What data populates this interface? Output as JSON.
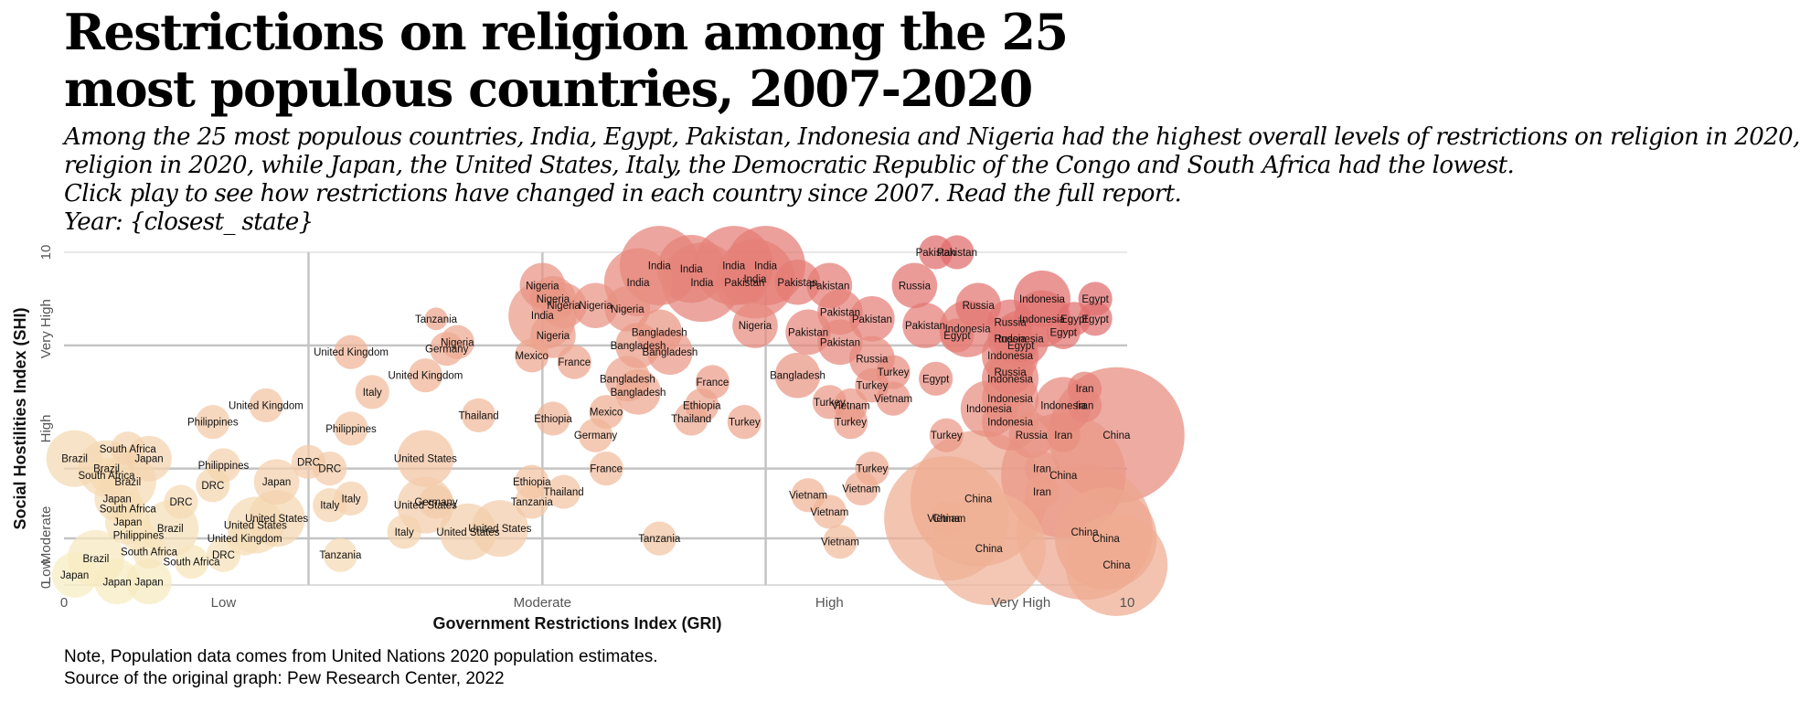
{
  "title": "Restrictions on religion among the 25 most populous countries, 2007-2020",
  "subtitle_lines": [
    "Among the 25 most populous countries, India, Egypt, Pakistan, Indonesia and Nigeria had the highest overall levels of restrictions on religion in 2020,",
    "religion in 2020, while Japan, the United States, Italy, the Democratic Republic of the Congo and South Africa had the lowest.",
    "Click play to see how restrictions have changed in each country since 2007. Read the full report.",
    "Year: {closest_ state}"
  ],
  "footer": {
    "note": "Note, Population data comes from United Nations 2020 population estimates.",
    "source": "Source of the original graph: Pew Research Center, 2022"
  },
  "chart_data": {
    "type": "scatter",
    "xlabel": "Government Restrictions Index (GRI)",
    "ylabel": "Social Hostilities Index (SHI)",
    "xlim": [
      0,
      10
    ],
    "ylim": [
      0,
      10
    ],
    "x_ticks": [
      {
        "value": 0,
        "label": "0"
      },
      {
        "value": 1.5,
        "label": "Low"
      },
      {
        "value": 4.5,
        "label": "Moderate"
      },
      {
        "value": 7.2,
        "label": "High"
      },
      {
        "value": 10,
        "label": "10"
      }
    ],
    "y_ticks": [
      {
        "value": 0,
        "label": "0"
      },
      {
        "value": 0.4,
        "label": "Low"
      },
      {
        "value": 1.5,
        "label": "Moderate"
      },
      {
        "value": 4.7,
        "label": "High"
      },
      {
        "value": 7.7,
        "label": "Very High"
      },
      {
        "value": 10,
        "label": "10"
      }
    ],
    "extra_x_tick": {
      "value": 9.0,
      "label": "Very High"
    },
    "x_gridlines": [
      2.3,
      4.5,
      6.6
    ],
    "y_gridlines": [
      1.4,
      3.5,
      7.2
    ],
    "grid": true,
    "color_scale": {
      "low": "#f7efc3",
      "mid": "#f1b99a",
      "high": "#e06b6b"
    },
    "points": [
      {
        "country": "India",
        "x": 5.6,
        "y": 9.6,
        "size": 7
      },
      {
        "country": "India",
        "x": 5.9,
        "y": 9.5,
        "size": 6
      },
      {
        "country": "India",
        "x": 6.3,
        "y": 9.6,
        "size": 7
      },
      {
        "country": "India",
        "x": 6.6,
        "y": 9.6,
        "size": 7
      },
      {
        "country": "India",
        "x": 6.5,
        "y": 9.2,
        "size": 7
      },
      {
        "country": "India",
        "x": 6.0,
        "y": 9.1,
        "size": 7
      },
      {
        "country": "India",
        "x": 5.4,
        "y": 9.1,
        "size": 6
      },
      {
        "country": "India",
        "x": 4.5,
        "y": 8.1,
        "size": 6
      },
      {
        "country": "Pakistan",
        "x": 8.2,
        "y": 10.0,
        "size": 3
      },
      {
        "country": "Pakistan",
        "x": 8.4,
        "y": 10.0,
        "size": 3
      },
      {
        "country": "Pakistan",
        "x": 6.9,
        "y": 9.1,
        "size": 4
      },
      {
        "country": "Pakistan",
        "x": 7.2,
        "y": 9.0,
        "size": 4
      },
      {
        "country": "Pakistan",
        "x": 6.4,
        "y": 9.1,
        "size": 4
      },
      {
        "country": "Pakistan",
        "x": 7.3,
        "y": 8.2,
        "size": 4
      },
      {
        "country": "Pakistan",
        "x": 7.6,
        "y": 8.0,
        "size": 4
      },
      {
        "country": "Pakistan",
        "x": 7.0,
        "y": 7.6,
        "size": 4
      },
      {
        "country": "Pakistan",
        "x": 7.3,
        "y": 7.3,
        "size": 4
      },
      {
        "country": "Pakistan",
        "x": 8.1,
        "y": 7.8,
        "size": 4
      },
      {
        "country": "Nigeria",
        "x": 4.5,
        "y": 9.0,
        "size": 4
      },
      {
        "country": "Nigeria",
        "x": 4.6,
        "y": 8.6,
        "size": 4
      },
      {
        "country": "Nigeria",
        "x": 4.7,
        "y": 8.4,
        "size": 4
      },
      {
        "country": "Nigeria",
        "x": 5.0,
        "y": 8.4,
        "size": 4
      },
      {
        "country": "Nigeria",
        "x": 5.3,
        "y": 8.3,
        "size": 4
      },
      {
        "country": "Nigeria",
        "x": 6.5,
        "y": 7.8,
        "size": 4
      },
      {
        "country": "Nigeria",
        "x": 4.6,
        "y": 7.5,
        "size": 4
      },
      {
        "country": "Nigeria",
        "x": 3.7,
        "y": 7.3,
        "size": 3
      },
      {
        "country": "Bangladesh",
        "x": 5.6,
        "y": 7.6,
        "size": 4
      },
      {
        "country": "Bangladesh",
        "x": 5.4,
        "y": 7.2,
        "size": 4
      },
      {
        "country": "Bangladesh",
        "x": 5.7,
        "y": 7.0,
        "size": 4
      },
      {
        "country": "Bangladesh",
        "x": 5.3,
        "y": 6.2,
        "size": 4
      },
      {
        "country": "Bangladesh",
        "x": 5.4,
        "y": 5.8,
        "size": 4
      },
      {
        "country": "Bangladesh",
        "x": 6.9,
        "y": 6.3,
        "size": 4
      },
      {
        "country": "Indonesia",
        "x": 9.2,
        "y": 8.6,
        "size": 5
      },
      {
        "country": "Indonesia",
        "x": 9.2,
        "y": 8.0,
        "size": 5
      },
      {
        "country": "Indonesia",
        "x": 8.5,
        "y": 7.7,
        "size": 5
      },
      {
        "country": "Indonesia",
        "x": 9.0,
        "y": 7.4,
        "size": 5
      },
      {
        "country": "Indonesia",
        "x": 8.9,
        "y": 6.9,
        "size": 5
      },
      {
        "country": "Indonesia",
        "x": 8.9,
        "y": 6.2,
        "size": 5
      },
      {
        "country": "Indonesia",
        "x": 8.9,
        "y": 5.6,
        "size": 5
      },
      {
        "country": "Indonesia",
        "x": 9.4,
        "y": 5.4,
        "size": 5
      },
      {
        "country": "Indonesia",
        "x": 8.7,
        "y": 5.3,
        "size": 5
      },
      {
        "country": "Indonesia",
        "x": 8.9,
        "y": 4.9,
        "size": 5
      },
      {
        "country": "Egypt",
        "x": 9.7,
        "y": 8.6,
        "size": 3
      },
      {
        "country": "Egypt",
        "x": 9.5,
        "y": 8.0,
        "size": 3
      },
      {
        "country": "Egypt",
        "x": 9.7,
        "y": 8.0,
        "size": 3
      },
      {
        "country": "Egypt",
        "x": 9.4,
        "y": 7.6,
        "size": 3
      },
      {
        "country": "Egypt",
        "x": 9.0,
        "y": 7.2,
        "size": 3
      },
      {
        "country": "Egypt",
        "x": 8.2,
        "y": 6.2,
        "size": 3
      },
      {
        "country": "Egypt",
        "x": 8.4,
        "y": 7.5,
        "size": 3
      },
      {
        "country": "Russia",
        "x": 8.0,
        "y": 9.0,
        "size": 4
      },
      {
        "country": "Russia",
        "x": 8.6,
        "y": 8.4,
        "size": 4
      },
      {
        "country": "Russia",
        "x": 8.9,
        "y": 7.9,
        "size": 4
      },
      {
        "country": "Russia",
        "x": 8.9,
        "y": 7.4,
        "size": 4
      },
      {
        "country": "Russia",
        "x": 8.9,
        "y": 6.4,
        "size": 4
      },
      {
        "country": "Russia",
        "x": 7.6,
        "y": 6.8,
        "size": 4
      },
      {
        "country": "Russia",
        "x": 9.1,
        "y": 4.5,
        "size": 4
      },
      {
        "country": "Iran",
        "x": 9.6,
        "y": 5.9,
        "size": 3
      },
      {
        "country": "Iran",
        "x": 9.6,
        "y": 5.4,
        "size": 3
      },
      {
        "country": "Iran",
        "x": 9.4,
        "y": 4.5,
        "size": 3
      },
      {
        "country": "Iran",
        "x": 9.2,
        "y": 3.5,
        "size": 3
      },
      {
        "country": "Iran",
        "x": 9.2,
        "y": 2.8,
        "size": 3
      },
      {
        "country": "China",
        "x": 9.9,
        "y": 4.5,
        "size": 12
      },
      {
        "country": "China",
        "x": 8.6,
        "y": 2.6,
        "size": 12
      },
      {
        "country": "China",
        "x": 9.6,
        "y": 1.6,
        "size": 12
      },
      {
        "country": "China",
        "x": 9.4,
        "y": 3.3,
        "size": 11
      },
      {
        "country": "China",
        "x": 8.7,
        "y": 1.1,
        "size": 10
      },
      {
        "country": "China",
        "x": 8.3,
        "y": 2.0,
        "size": 11
      },
      {
        "country": "China",
        "x": 9.8,
        "y": 1.4,
        "size": 9
      },
      {
        "country": "China",
        "x": 9.9,
        "y": 0.6,
        "size": 9
      },
      {
        "country": "Turkey",
        "x": 7.6,
        "y": 6.0,
        "size": 3
      },
      {
        "country": "Turkey",
        "x": 7.8,
        "y": 6.4,
        "size": 3
      },
      {
        "country": "Turkey",
        "x": 7.2,
        "y": 5.5,
        "size": 3
      },
      {
        "country": "Turkey",
        "x": 6.4,
        "y": 4.9,
        "size": 3
      },
      {
        "country": "Turkey",
        "x": 7.4,
        "y": 4.9,
        "size": 3
      },
      {
        "country": "Turkey",
        "x": 8.3,
        "y": 4.5,
        "size": 3
      },
      {
        "country": "Turkey",
        "x": 7.6,
        "y": 3.5,
        "size": 3
      },
      {
        "country": "Vietnam",
        "x": 7.4,
        "y": 5.4,
        "size": 3
      },
      {
        "country": "Vietnam",
        "x": 7.8,
        "y": 5.6,
        "size": 3
      },
      {
        "country": "Vietnam",
        "x": 7.5,
        "y": 2.9,
        "size": 3
      },
      {
        "country": "Vietnam",
        "x": 7.0,
        "y": 2.7,
        "size": 3
      },
      {
        "country": "Vietnam",
        "x": 7.2,
        "y": 2.2,
        "size": 3
      },
      {
        "country": "Vietnam",
        "x": 8.3,
        "y": 2.0,
        "size": 3
      },
      {
        "country": "Vietnam",
        "x": 7.3,
        "y": 1.3,
        "size": 3
      },
      {
        "country": "Thailand",
        "x": 5.9,
        "y": 5.0,
        "size": 3
      },
      {
        "country": "Thailand",
        "x": 4.7,
        "y": 2.8,
        "size": 3
      },
      {
        "country": "Thailand",
        "x": 3.9,
        "y": 5.1,
        "size": 3
      },
      {
        "country": "France",
        "x": 4.8,
        "y": 6.7,
        "size": 3
      },
      {
        "country": "France",
        "x": 6.1,
        "y": 6.1,
        "size": 3
      },
      {
        "country": "France",
        "x": 5.1,
        "y": 3.5,
        "size": 3
      },
      {
        "country": "Mexico",
        "x": 4.4,
        "y": 6.9,
        "size": 3
      },
      {
        "country": "Mexico",
        "x": 5.1,
        "y": 5.2,
        "size": 3
      },
      {
        "country": "Germany",
        "x": 3.6,
        "y": 7.1,
        "size": 3
      },
      {
        "country": "Germany",
        "x": 5.0,
        "y": 4.5,
        "size": 3
      },
      {
        "country": "Germany",
        "x": 3.5,
        "y": 2.5,
        "size": 3
      },
      {
        "country": "United Kingdom",
        "x": 2.7,
        "y": 7.0,
        "size": 3
      },
      {
        "country": "United Kingdom",
        "x": 3.4,
        "y": 6.3,
        "size": 3
      },
      {
        "country": "United Kingdom",
        "x": 1.9,
        "y": 5.4,
        "size": 3
      },
      {
        "country": "United Kingdom",
        "x": 1.7,
        "y": 1.4,
        "size": 3
      },
      {
        "country": "Philippines",
        "x": 1.4,
        "y": 4.9,
        "size": 3
      },
      {
        "country": "Philippines",
        "x": 2.7,
        "y": 4.7,
        "size": 3
      },
      {
        "country": "Philippines",
        "x": 1.5,
        "y": 3.6,
        "size": 3
      },
      {
        "country": "Philippines",
        "x": 0.7,
        "y": 1.5,
        "size": 3
      },
      {
        "country": "Ethiopia",
        "x": 4.6,
        "y": 5.0,
        "size": 3
      },
      {
        "country": "Ethiopia",
        "x": 4.4,
        "y": 3.1,
        "size": 3
      },
      {
        "country": "Ethiopia",
        "x": 6.0,
        "y": 5.4,
        "size": 3
      },
      {
        "country": "Italy",
        "x": 2.9,
        "y": 5.8,
        "size": 3
      },
      {
        "country": "Italy",
        "x": 2.7,
        "y": 2.6,
        "size": 3
      },
      {
        "country": "Italy",
        "x": 2.5,
        "y": 2.4,
        "size": 3
      },
      {
        "country": "Italy",
        "x": 3.2,
        "y": 1.6,
        "size": 3
      },
      {
        "country": "United States",
        "x": 3.4,
        "y": 3.8,
        "size": 5
      },
      {
        "country": "United States",
        "x": 3.4,
        "y": 2.4,
        "size": 5
      },
      {
        "country": "United States",
        "x": 4.1,
        "y": 1.7,
        "size": 5
      },
      {
        "country": "United States",
        "x": 3.8,
        "y": 1.6,
        "size": 5
      },
      {
        "country": "United States",
        "x": 1.8,
        "y": 1.8,
        "size": 5
      },
      {
        "country": "United States",
        "x": 2.0,
        "y": 2.0,
        "size": 5
      },
      {
        "country": "DRC",
        "x": 2.3,
        "y": 3.7,
        "size": 3
      },
      {
        "country": "DRC",
        "x": 1.4,
        "y": 3.0,
        "size": 3
      },
      {
        "country": "DRC",
        "x": 2.5,
        "y": 3.5,
        "size": 3
      },
      {
        "country": "DRC",
        "x": 1.1,
        "y": 2.5,
        "size": 3
      },
      {
        "country": "DRC",
        "x": 1.5,
        "y": 0.9,
        "size": 3
      },
      {
        "country": "Tanzania",
        "x": 4.4,
        "y": 2.5,
        "size": 3
      },
      {
        "country": "Tanzania",
        "x": 5.6,
        "y": 1.4,
        "size": 3
      },
      {
        "country": "Tanzania",
        "x": 2.6,
        "y": 0.9,
        "size": 3
      },
      {
        "country": "Tanzania",
        "x": 3.5,
        "y": 8.0,
        "size": 2
      },
      {
        "country": "South Africa",
        "x": 0.6,
        "y": 4.1,
        "size": 3
      },
      {
        "country": "South Africa",
        "x": 0.4,
        "y": 3.3,
        "size": 3
      },
      {
        "country": "South Africa",
        "x": 0.6,
        "y": 2.3,
        "size": 3
      },
      {
        "country": "South Africa",
        "x": 0.8,
        "y": 1.0,
        "size": 3
      },
      {
        "country": "South Africa",
        "x": 1.2,
        "y": 0.7,
        "size": 3
      },
      {
        "country": "Brazil",
        "x": 0.1,
        "y": 3.8,
        "size": 5
      },
      {
        "country": "Brazil",
        "x": 0.4,
        "y": 3.5,
        "size": 5
      },
      {
        "country": "Brazil",
        "x": 0.6,
        "y": 3.1,
        "size": 5
      },
      {
        "country": "Brazil",
        "x": 1.0,
        "y": 1.7,
        "size": 5
      },
      {
        "country": "Brazil",
        "x": 0.3,
        "y": 0.8,
        "size": 5
      },
      {
        "country": "Japan",
        "x": 0.1,
        "y": 0.3,
        "size": 4
      },
      {
        "country": "Japan",
        "x": 0.5,
        "y": 0.1,
        "size": 4
      },
      {
        "country": "Japan",
        "x": 0.8,
        "y": 0.1,
        "size": 4
      },
      {
        "country": "Japan",
        "x": 0.6,
        "y": 1.9,
        "size": 4
      },
      {
        "country": "Japan",
        "x": 2.0,
        "y": 3.1,
        "size": 4
      },
      {
        "country": "Japan",
        "x": 0.5,
        "y": 2.6,
        "size": 4
      },
      {
        "country": "Japan",
        "x": 0.8,
        "y": 3.8,
        "size": 4
      }
    ]
  }
}
